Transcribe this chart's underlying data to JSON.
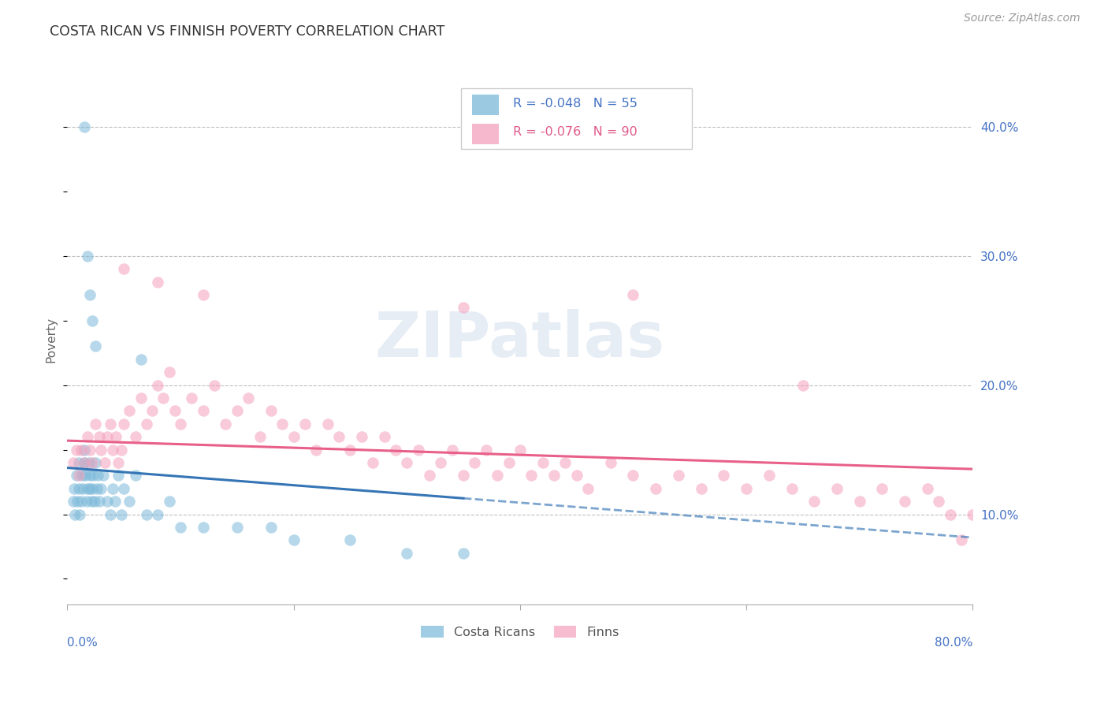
{
  "title": "COSTA RICAN VS FINNISH POVERTY CORRELATION CHART",
  "source": "Source: ZipAtlas.com",
  "ylabel": "Poverty",
  "y_ticks": [
    0.1,
    0.2,
    0.3,
    0.4
  ],
  "xlim": [
    0.0,
    0.8
  ],
  "ylim": [
    0.03,
    0.44
  ],
  "legend_r_blue": "-0.048",
  "legend_n_blue": "55",
  "legend_r_pink": "-0.076",
  "legend_n_pink": "90",
  "blue_color": "#7ab8d9",
  "pink_color": "#f4a0bc",
  "blue_line_color": "#3575b5",
  "pink_line_color": "#e8608a",
  "watermark": "ZIPatlas",
  "blue_x": [
    0.005,
    0.006,
    0.007,
    0.008,
    0.009,
    0.01,
    0.01,
    0.011,
    0.012,
    0.013,
    0.014,
    0.015,
    0.015,
    0.016,
    0.017,
    0.018,
    0.019,
    0.02,
    0.02,
    0.021,
    0.022,
    0.023,
    0.024,
    0.025,
    0.026,
    0.027,
    0.028,
    0.03,
    0.032,
    0.035,
    0.038,
    0.04,
    0.042,
    0.045,
    0.048,
    0.05,
    0.055,
    0.06,
    0.065,
    0.07,
    0.08,
    0.09,
    0.1,
    0.12,
    0.15,
    0.18,
    0.2,
    0.25,
    0.3,
    0.35,
    0.015,
    0.018,
    0.02,
    0.022,
    0.025
  ],
  "blue_y": [
    0.11,
    0.12,
    0.1,
    0.13,
    0.11,
    0.12,
    0.14,
    0.1,
    0.11,
    0.13,
    0.12,
    0.15,
    0.14,
    0.13,
    0.11,
    0.12,
    0.14,
    0.13,
    0.12,
    0.11,
    0.12,
    0.13,
    0.11,
    0.14,
    0.12,
    0.13,
    0.11,
    0.12,
    0.13,
    0.11,
    0.1,
    0.12,
    0.11,
    0.13,
    0.1,
    0.12,
    0.11,
    0.13,
    0.22,
    0.1,
    0.1,
    0.11,
    0.09,
    0.09,
    0.09,
    0.09,
    0.08,
    0.08,
    0.07,
    0.07,
    0.4,
    0.3,
    0.27,
    0.25,
    0.23
  ],
  "pink_x": [
    0.005,
    0.008,
    0.01,
    0.012,
    0.015,
    0.018,
    0.02,
    0.022,
    0.025,
    0.028,
    0.03,
    0.033,
    0.035,
    0.038,
    0.04,
    0.043,
    0.045,
    0.048,
    0.05,
    0.055,
    0.06,
    0.065,
    0.07,
    0.075,
    0.08,
    0.085,
    0.09,
    0.095,
    0.1,
    0.11,
    0.12,
    0.13,
    0.14,
    0.15,
    0.16,
    0.17,
    0.18,
    0.19,
    0.2,
    0.21,
    0.22,
    0.23,
    0.24,
    0.25,
    0.26,
    0.27,
    0.28,
    0.29,
    0.3,
    0.31,
    0.32,
    0.33,
    0.34,
    0.35,
    0.36,
    0.37,
    0.38,
    0.39,
    0.4,
    0.41,
    0.42,
    0.43,
    0.44,
    0.45,
    0.46,
    0.48,
    0.5,
    0.52,
    0.54,
    0.56,
    0.58,
    0.6,
    0.62,
    0.64,
    0.66,
    0.68,
    0.7,
    0.72,
    0.74,
    0.76,
    0.77,
    0.78,
    0.79,
    0.8,
    0.05,
    0.08,
    0.12,
    0.35,
    0.5,
    0.65
  ],
  "pink_y": [
    0.14,
    0.15,
    0.13,
    0.15,
    0.14,
    0.16,
    0.15,
    0.14,
    0.17,
    0.16,
    0.15,
    0.14,
    0.16,
    0.17,
    0.15,
    0.16,
    0.14,
    0.15,
    0.17,
    0.18,
    0.16,
    0.19,
    0.17,
    0.18,
    0.2,
    0.19,
    0.21,
    0.18,
    0.17,
    0.19,
    0.18,
    0.2,
    0.17,
    0.18,
    0.19,
    0.16,
    0.18,
    0.17,
    0.16,
    0.17,
    0.15,
    0.17,
    0.16,
    0.15,
    0.16,
    0.14,
    0.16,
    0.15,
    0.14,
    0.15,
    0.13,
    0.14,
    0.15,
    0.13,
    0.14,
    0.15,
    0.13,
    0.14,
    0.15,
    0.13,
    0.14,
    0.13,
    0.14,
    0.13,
    0.12,
    0.14,
    0.13,
    0.12,
    0.13,
    0.12,
    0.13,
    0.12,
    0.13,
    0.12,
    0.11,
    0.12,
    0.11,
    0.12,
    0.11,
    0.12,
    0.11,
    0.1,
    0.08,
    0.1,
    0.29,
    0.28,
    0.27,
    0.26,
    0.27,
    0.2
  ]
}
